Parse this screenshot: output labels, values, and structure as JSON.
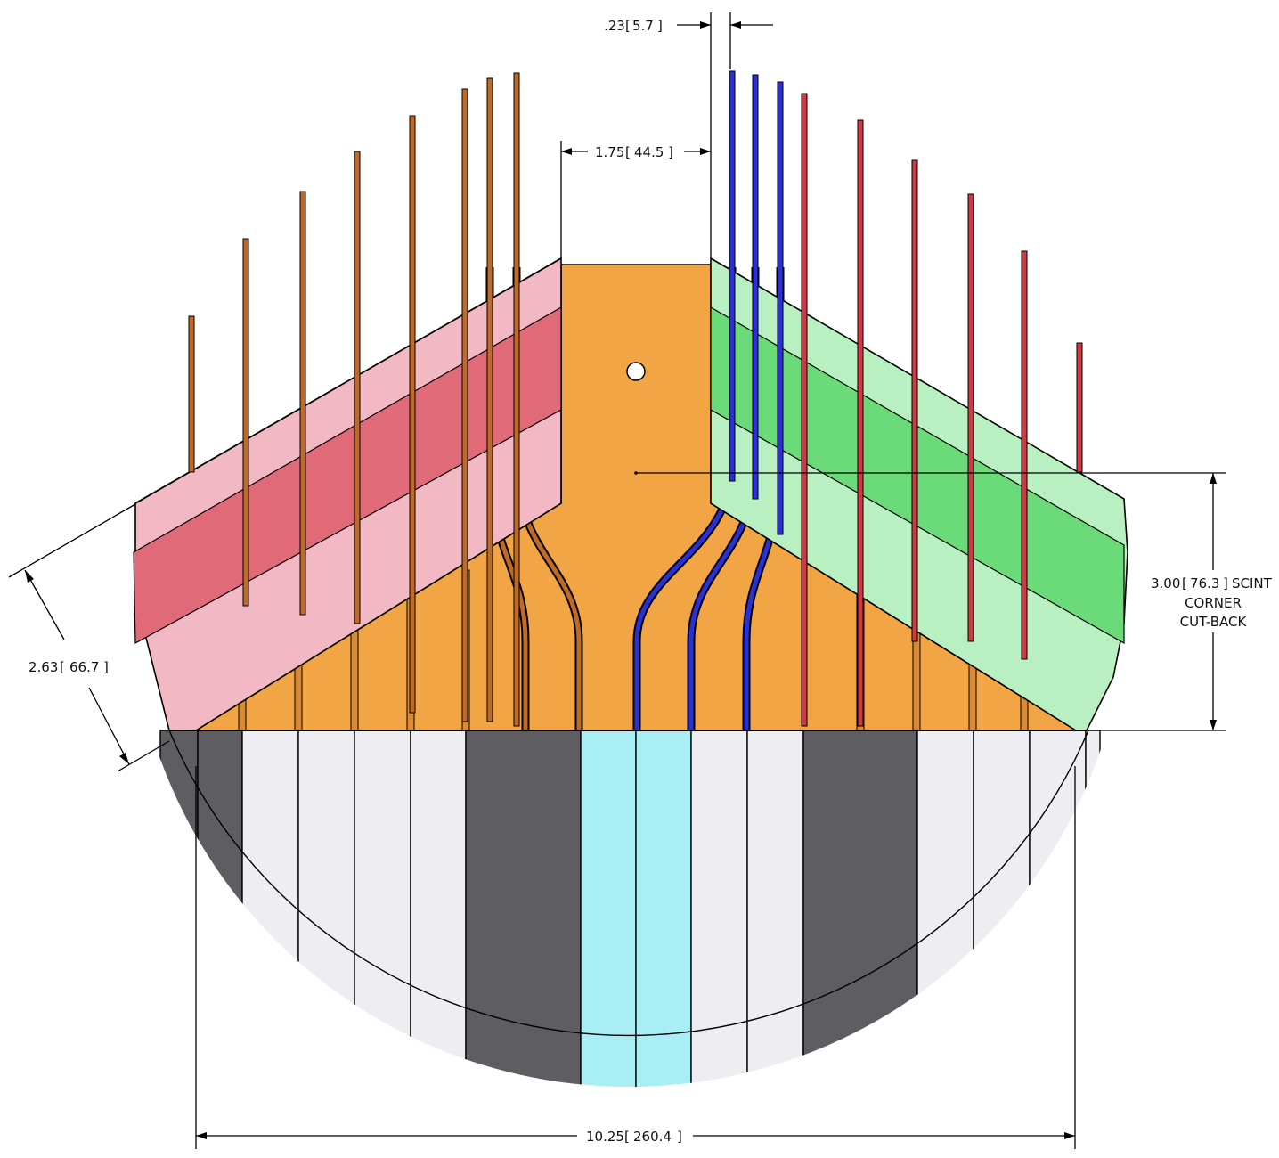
{
  "dimensions": {
    "fiber_gap": {
      "imperial": ".23",
      "metric": "5.7"
    },
    "center_gap": {
      "imperial": "1.75",
      "metric": "44.5"
    },
    "corner_cutback": {
      "imperial": "3.00",
      "metric": "76.3",
      "note_1": "SCINT",
      "note_2": "CORNER",
      "note_3": "CUT-BACK"
    },
    "slant": {
      "imperial": "2.63",
      "metric": "66.7"
    },
    "overall_width": {
      "imperial": "10.25",
      "metric": "260.4"
    }
  },
  "colors": {
    "center_plate": "#f2a545",
    "left_wing_light": "#f2b8c3",
    "left_wing_band": "#e06a78",
    "right_wing_light": "#b8f0c2",
    "right_wing_band": "#6bda78",
    "strip_white": "#ededf2",
    "strip_dark": "#5e5e62",
    "strip_cyan": "#a9eef5",
    "fiber_brown": "#c06a2a",
    "fiber_blue": "#2b2fd6",
    "fiber_red": "#cc3a44"
  }
}
